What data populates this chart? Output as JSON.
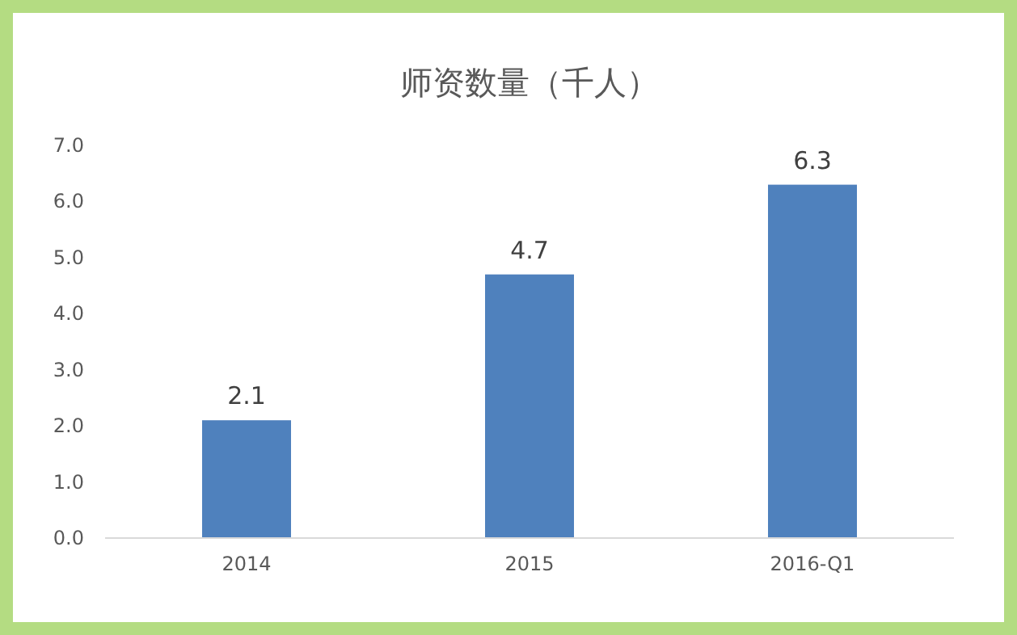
{
  "chart_data": {
    "type": "bar",
    "title": "师资数量（千人）",
    "categories": [
      "2014",
      "2015",
      "2016-Q1"
    ],
    "series": [
      {
        "color": "#4f81bd",
        "values": [
          2.1,
          4.7,
          6.3
        ]
      }
    ],
    "ylim": [
      0,
      7
    ],
    "yticks": [
      {
        "value": 0,
        "label": "0.0"
      },
      {
        "value": 1,
        "label": "1.0"
      },
      {
        "value": 2,
        "label": "2.0"
      },
      {
        "value": 3,
        "label": "3.0"
      },
      {
        "value": 4,
        "label": "4.0"
      },
      {
        "value": 5,
        "label": "5.0"
      },
      {
        "value": 6,
        "label": "6.0"
      },
      {
        "value": 7,
        "label": "7.0"
      }
    ],
    "data_labels": true
  }
}
